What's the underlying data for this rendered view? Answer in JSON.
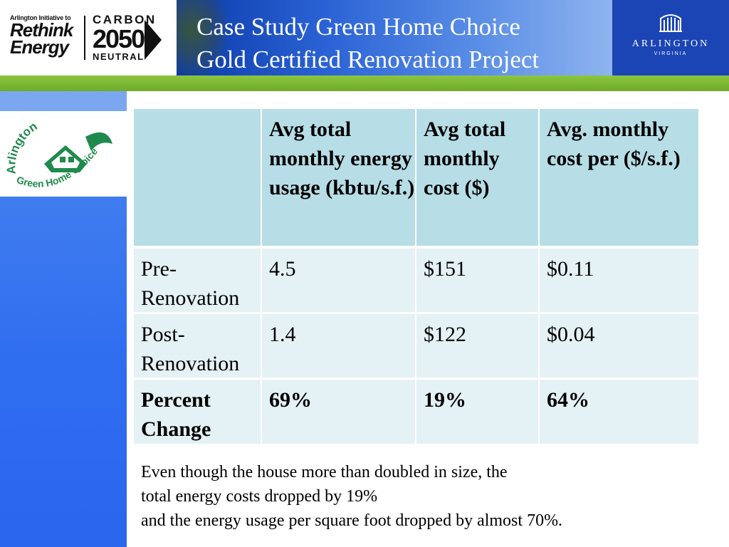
{
  "header": {
    "title_line1": "Case Study Green Home Choice",
    "title_line2": "Gold Certified Renovation Project",
    "left_logo": {
      "rethink_small": "Arlington Initiative to",
      "rethink_big1": "Rethink",
      "rethink_big2": "Energy",
      "carbon_top": "CARBON",
      "carbon_mid": "2050",
      "carbon_bot": "NEUTRAL"
    },
    "right_logo": {
      "name": "ARLINGTON",
      "sub": "VIRGINIA"
    }
  },
  "side_logo": {
    "arc_top": "Arlington",
    "arc_bottom": "Green Home Choice"
  },
  "table": {
    "headers": [
      "",
      "Avg total monthly energy usage (kbtu/s.f.)",
      "Avg total monthly cost ($)",
      "Avg. monthly cost per ($/s.f.)"
    ],
    "rows": [
      [
        "Pre-Renovation",
        "4.5",
        "$151",
        "$0.11"
      ],
      [
        "Post-Renovation",
        "1.4",
        "$122",
        "$0.04"
      ],
      [
        "Percent Change",
        "69%",
        "19%",
        "64%"
      ]
    ]
  },
  "note": {
    "line1": "Even though the house more than doubled in size, the",
    "line2": "total energy costs dropped by 19%",
    "line3": "and the energy usage per square foot dropped by almost 70%."
  },
  "colors": {
    "title_band_dark": "#0a3aa8",
    "green_bar": "#8cc63f",
    "side_band": "#2f6df0",
    "table_header": "#b7dde6",
    "table_body": "#e4f1f5",
    "logo_green": "#1f8a4c"
  }
}
